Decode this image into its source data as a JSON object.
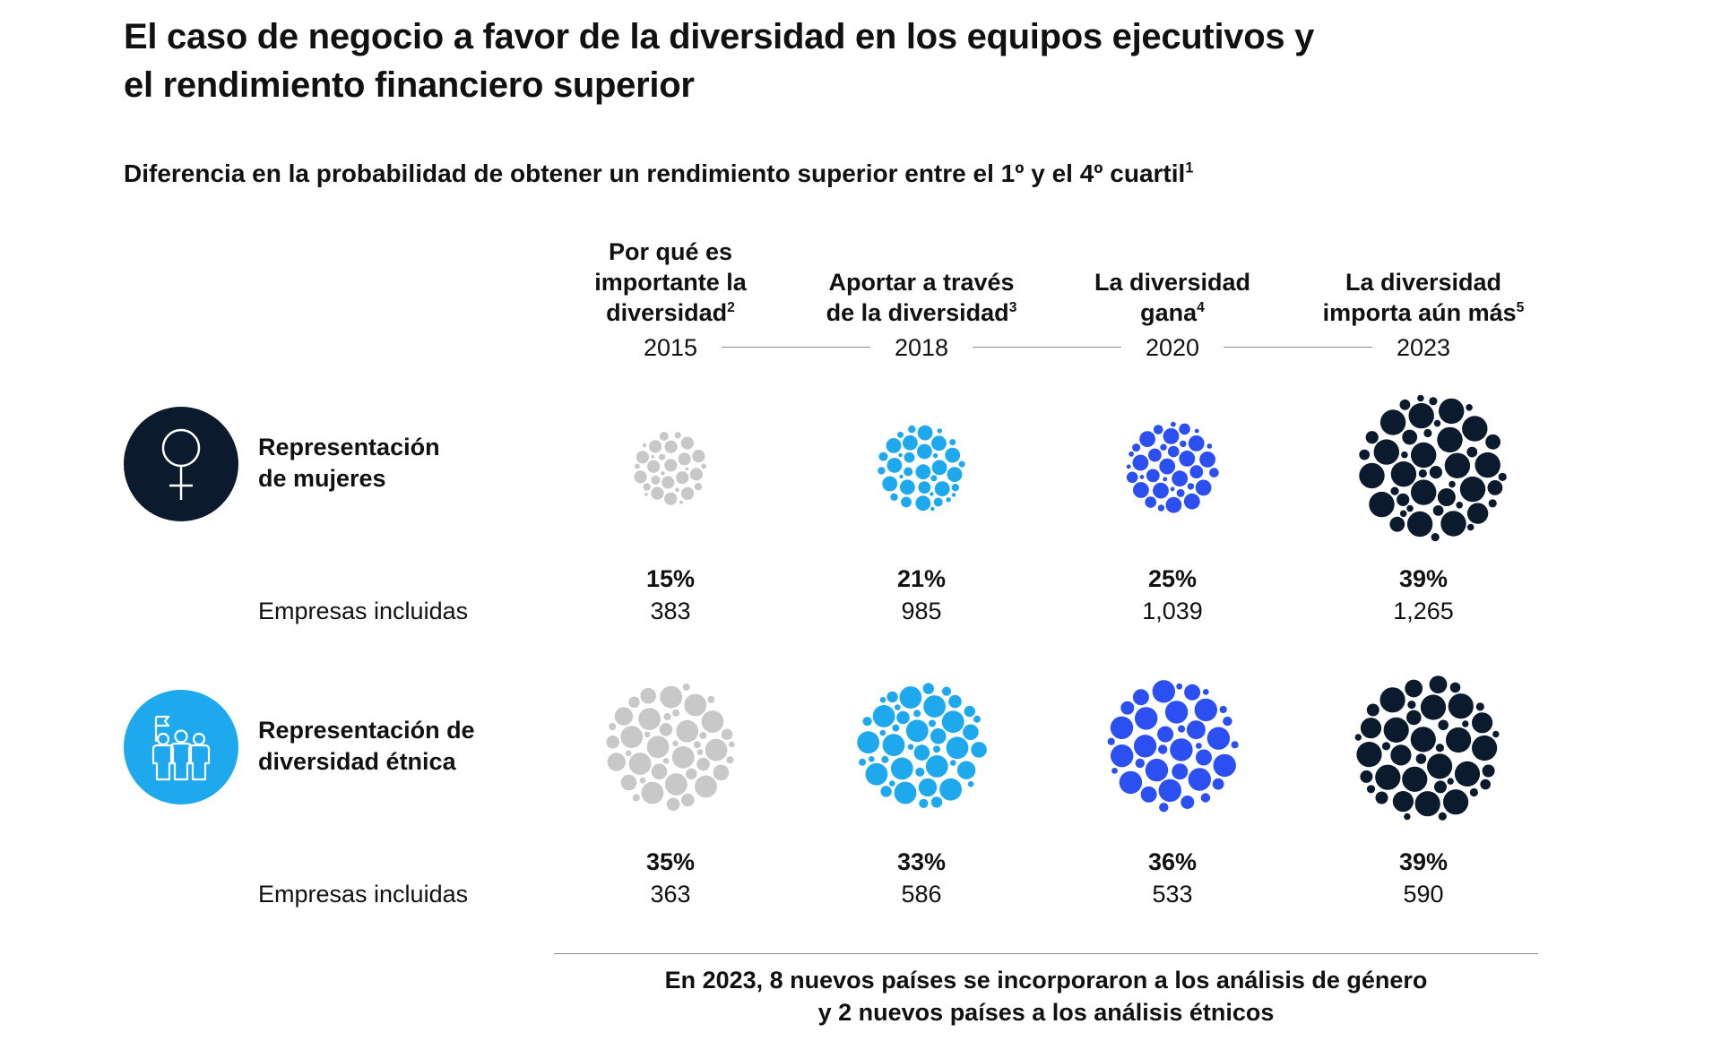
{
  "title_line1": "El caso de negocio a favor de la diversidad en los equipos ejecutivos y",
  "title_line2": "el rendimiento financiero superior",
  "subtitle": "Diferencia en la probabilidad de obtener un rendimiento superior entre el 1º y el 4º cuartil",
  "subtitle_sup": "1",
  "columns": [
    {
      "lines": [
        "Por qué es",
        "importante la",
        "diversidad"
      ],
      "sup": "2",
      "year": "2015",
      "color": "#c8c8c8"
    },
    {
      "lines": [
        "Aportar a través",
        "de la diversidad"
      ],
      "sup": "3",
      "year": "2018",
      "color": "#1ea9ef"
    },
    {
      "lines": [
        "La diversidad",
        "gana"
      ],
      "sup": "4",
      "year": "2020",
      "color": "#2b4ff0"
    },
    {
      "lines": [
        "La diversidad",
        "importa aún más"
      ],
      "sup": "5",
      "year": "2023",
      "color": "#0b1a2c"
    }
  ],
  "rows": [
    {
      "label_line1": "Representación",
      "label_line2": "de mujeres",
      "icon": "female-symbol-icon",
      "icon_bg": "#0b1a2c",
      "companies_label": "Empresas incluidas",
      "pct": [
        "15%",
        "21%",
        "25%",
        "39%"
      ],
      "companies": [
        "383",
        "985",
        "1,039",
        "1,265"
      ]
    },
    {
      "label_line1": "Representación de",
      "label_line2": "diversidad étnica",
      "icon": "people-group-flag-icon",
      "icon_bg": "#1ea9ef",
      "companies_label": "Empresas incluidas",
      "pct": [
        "35%",
        "33%",
        "36%",
        "39%"
      ],
      "companies": [
        "363",
        "586",
        "533",
        "590"
      ]
    }
  ],
  "footer_line1": "En 2023, 8 nuevos países se incorporaron a los análisis de género",
  "footer_line2": "y 2 nuevos países a los análisis étnicos",
  "chart_data": {
    "type": "table",
    "categories": [
      "2015",
      "2018",
      "2020",
      "2023"
    ],
    "series": [
      {
        "name": "Representación de mujeres",
        "values": [
          15,
          21,
          25,
          39
        ],
        "companies": [
          383,
          985,
          1039,
          1265
        ]
      },
      {
        "name": "Representación de diversidad étnica",
        "values": [
          35,
          33,
          36,
          39
        ],
        "companies": [
          363,
          586,
          533,
          590
        ]
      }
    ],
    "unit": "%"
  }
}
